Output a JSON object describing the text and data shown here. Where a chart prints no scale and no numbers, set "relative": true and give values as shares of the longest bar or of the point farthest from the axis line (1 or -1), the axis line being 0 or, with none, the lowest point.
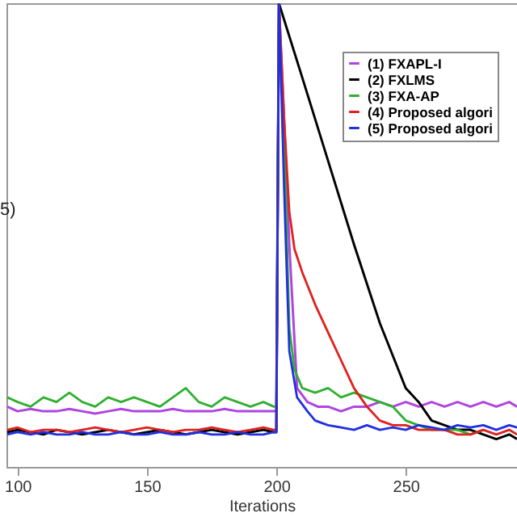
{
  "chart_data": {
    "type": "line",
    "xlabel": "Iterations",
    "relative": true,
    "xlim": [
      95.7,
      293
    ],
    "xticks": [
      100,
      150,
      200,
      250
    ],
    "grid": false,
    "legend": "top right",
    "annotations": [
      "5)"
    ],
    "series": [
      {
        "name": "(1) FXAPL-I",
        "color": "#b044e0",
        "x": [
          96,
          100,
          105,
          110,
          115,
          120,
          125,
          130,
          135,
          140,
          145,
          150,
          155,
          160,
          165,
          170,
          175,
          180,
          185,
          190,
          195,
          199,
          200,
          201,
          203,
          205,
          208,
          212,
          216,
          220,
          225,
          230,
          235,
          240,
          245,
          250,
          255,
          260,
          265,
          270,
          275,
          280,
          285,
          290,
          293
        ],
        "values": [
          0.13,
          0.12,
          0.125,
          0.12,
          0.12,
          0.125,
          0.12,
          0.115,
          0.12,
          0.125,
          0.12,
          0.12,
          0.12,
          0.125,
          0.12,
          0.12,
          0.12,
          0.125,
          0.12,
          0.12,
          0.12,
          0.12,
          0.12,
          1,
          0.75,
          0.48,
          0.17,
          0.14,
          0.13,
          0.13,
          0.12,
          0.13,
          0.13,
          0.14,
          0.13,
          0.14,
          0.13,
          0.14,
          0.13,
          0.14,
          0.13,
          0.14,
          0.13,
          0.14,
          0.13
        ]
      },
      {
        "name": "(2) FXLMS",
        "color": "#000000",
        "x": [
          96,
          100,
          105,
          110,
          115,
          120,
          125,
          130,
          135,
          140,
          145,
          150,
          155,
          160,
          165,
          170,
          175,
          180,
          185,
          190,
          195,
          199,
          200,
          201,
          210,
          220,
          230,
          240,
          250,
          255,
          260,
          265,
          270,
          275,
          280,
          285,
          290,
          293
        ],
        "values": [
          0.075,
          0.08,
          0.075,
          0.07,
          0.08,
          0.075,
          0.07,
          0.075,
          0.08,
          0.075,
          0.07,
          0.075,
          0.08,
          0.075,
          0.07,
          0.075,
          0.08,
          0.075,
          0.07,
          0.075,
          0.08,
          0.075,
          0.075,
          1,
          0.84,
          0.66,
          0.48,
          0.31,
          0.17,
          0.14,
          0.1,
          0.09,
          0.08,
          0.08,
          0.07,
          0.06,
          0.07,
          0.06
        ]
      },
      {
        "name": "(3) FXA-AP",
        "color": "#30b030",
        "x": [
          96,
          100,
          105,
          110,
          115,
          120,
          125,
          130,
          135,
          140,
          145,
          150,
          155,
          160,
          165,
          170,
          175,
          180,
          185,
          190,
          195,
          199,
          200,
          201,
          203,
          205,
          207,
          210,
          215,
          220,
          225,
          230,
          235,
          240,
          245,
          250,
          255,
          260,
          265,
          270,
          275,
          280
        ],
        "values": [
          0.15,
          0.14,
          0.13,
          0.15,
          0.14,
          0.16,
          0.14,
          0.13,
          0.15,
          0.14,
          0.15,
          0.14,
          0.13,
          0.15,
          0.17,
          0.14,
          0.13,
          0.15,
          0.14,
          0.13,
          0.14,
          0.13,
          0.13,
          1,
          0.7,
          0.3,
          0.21,
          0.17,
          0.16,
          0.17,
          0.15,
          0.16,
          0.15,
          0.14,
          0.13,
          0.1,
          0.09,
          0.08,
          0.08,
          0.08,
          0.07,
          0.08
        ]
      },
      {
        "name": "(4) Proposed algori",
        "color": "#e02020",
        "x": [
          96,
          100,
          105,
          110,
          115,
          120,
          125,
          130,
          135,
          140,
          145,
          150,
          155,
          160,
          165,
          170,
          175,
          180,
          185,
          190,
          195,
          199,
          200,
          201,
          203,
          205,
          207,
          210,
          215,
          220,
          225,
          230,
          235,
          240,
          245,
          250,
          255,
          260,
          265,
          270,
          275,
          280,
          285,
          290,
          293
        ],
        "values": [
          0.08,
          0.085,
          0.075,
          0.08,
          0.08,
          0.075,
          0.08,
          0.085,
          0.08,
          0.075,
          0.08,
          0.085,
          0.08,
          0.075,
          0.08,
          0.08,
          0.085,
          0.08,
          0.075,
          0.08,
          0.085,
          0.08,
          0.08,
          1,
          0.75,
          0.55,
          0.47,
          0.42,
          0.35,
          0.29,
          0.23,
          0.17,
          0.13,
          0.1,
          0.09,
          0.09,
          0.08,
          0.08,
          0.08,
          0.07,
          0.07,
          0.08,
          0.07,
          0.08,
          0.07
        ]
      },
      {
        "name": "(5) Proposed algori",
        "color": "#2030e0",
        "x": [
          96,
          100,
          105,
          110,
          115,
          120,
          125,
          130,
          135,
          140,
          145,
          150,
          155,
          160,
          165,
          170,
          175,
          180,
          185,
          190,
          195,
          199,
          200,
          201,
          203,
          205,
          208,
          212,
          215,
          220,
          225,
          230,
          235,
          240,
          245,
          250,
          255,
          260,
          265,
          270,
          275,
          280,
          285,
          290,
          293
        ],
        "values": [
          0.07,
          0.075,
          0.07,
          0.075,
          0.07,
          0.07,
          0.075,
          0.07,
          0.07,
          0.075,
          0.07,
          0.07,
          0.075,
          0.07,
          0.07,
          0.075,
          0.07,
          0.07,
          0.075,
          0.07,
          0.07,
          0.075,
          0.075,
          1,
          0.6,
          0.25,
          0.15,
          0.12,
          0.1,
          0.09,
          0.085,
          0.08,
          0.09,
          0.08,
          0.085,
          0.08,
          0.09,
          0.085,
          0.08,
          0.09,
          0.085,
          0.09,
          0.08,
          0.09,
          0.085
        ]
      }
    ]
  }
}
